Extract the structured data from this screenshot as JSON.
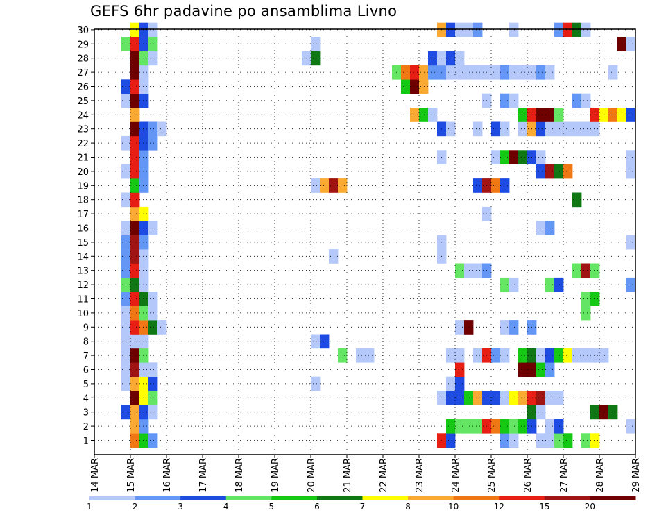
{
  "chart_data": {
    "type": "heatmap",
    "title": "GEFS 6hr padavine po ansamblima Livno",
    "x_tick_labels": [
      "14 MAR",
      "15 MAR",
      "16 MAR",
      "17 MAR",
      "18 MAR",
      "19 MAR",
      "20 MAR",
      "21 MAR",
      "22 MAR",
      "23 MAR",
      "24 MAR",
      "25 MAR",
      "26 MAR",
      "27 MAR",
      "28 MAR",
      "29 MAR"
    ],
    "y_tick_labels": [
      "1",
      "2",
      "3",
      "4",
      "5",
      "6",
      "7",
      "8",
      "9",
      "10",
      "11",
      "12",
      "13",
      "14",
      "15",
      "16",
      "17",
      "18",
      "19",
      "20",
      "21",
      "22",
      "23",
      "24",
      "25",
      "26",
      "27",
      "28",
      "29",
      "30"
    ],
    "steps_per_day": 4,
    "grid": true,
    "colorbar": {
      "labels": [
        "1",
        "2",
        "3",
        "4",
        "5",
        "6",
        "7",
        "8",
        "10",
        "12",
        "15",
        "20"
      ],
      "colors": [
        "#b4c8fa",
        "#6496f5",
        "#1e4be1",
        "#64e664",
        "#14c814",
        "#0f7814",
        "#ffff00",
        "#faaa32",
        "#f07814",
        "#e61e14",
        "#a01414",
        "#6e0000"
      ]
    },
    "ensemble_rows": [
      {
        "member": 1,
        "segments": [
          [
            15.0,
            8
          ],
          [
            15.25,
            4
          ],
          [
            15.5,
            1
          ],
          [
            23.5,
            9
          ],
          [
            23.75,
            2
          ],
          [
            25.25,
            1
          ],
          [
            25.5,
            0
          ],
          [
            26.25,
            0
          ],
          [
            26.5,
            0
          ],
          [
            26.75,
            3
          ],
          [
            27.0,
            4
          ],
          [
            27.5,
            3
          ],
          [
            27.75,
            6
          ]
        ]
      },
      {
        "member": 2,
        "segments": [
          [
            15.0,
            7
          ],
          [
            15.25,
            1
          ],
          [
            23.75,
            4
          ],
          [
            24.0,
            3
          ],
          [
            24.25,
            3
          ],
          [
            24.5,
            3
          ],
          [
            24.75,
            9
          ],
          [
            25.0,
            8
          ],
          [
            25.25,
            4
          ],
          [
            25.5,
            3
          ],
          [
            25.75,
            4
          ],
          [
            26.0,
            2
          ],
          [
            26.5,
            0
          ],
          [
            26.75,
            2
          ],
          [
            28.75,
            0
          ]
        ]
      },
      {
        "member": 3,
        "segments": [
          [
            14.75,
            2
          ],
          [
            15.0,
            7
          ],
          [
            15.25,
            2
          ],
          [
            15.5,
            0
          ],
          [
            26.0,
            5
          ],
          [
            26.25,
            0
          ],
          [
            27.75,
            5
          ],
          [
            28.0,
            11
          ],
          [
            28.25,
            5
          ]
        ]
      },
      {
        "member": 4,
        "segments": [
          [
            15.0,
            11
          ],
          [
            15.25,
            6
          ],
          [
            15.5,
            3
          ],
          [
            23.5,
            0
          ],
          [
            23.75,
            2
          ],
          [
            24.0,
            2
          ],
          [
            24.25,
            4
          ],
          [
            24.5,
            7
          ],
          [
            24.75,
            2
          ],
          [
            25.0,
            2
          ],
          [
            25.25,
            0
          ],
          [
            25.5,
            6
          ],
          [
            25.75,
            7
          ],
          [
            26.0,
            9
          ],
          [
            26.25,
            10
          ],
          [
            26.5,
            0
          ],
          [
            26.75,
            0
          ]
        ]
      },
      {
        "member": 5,
        "segments": [
          [
            14.75,
            0
          ],
          [
            15.0,
            7
          ],
          [
            15.25,
            6
          ],
          [
            15.5,
            2
          ],
          [
            20.0,
            0
          ],
          [
            23.75,
            0
          ],
          [
            24.0,
            2
          ]
        ]
      },
      {
        "member": 6,
        "segments": [
          [
            14.75,
            0
          ],
          [
            15.0,
            10
          ],
          [
            15.25,
            0
          ],
          [
            15.5,
            0
          ],
          [
            24.0,
            9
          ],
          [
            25.75,
            11
          ],
          [
            26.0,
            11
          ],
          [
            26.25,
            4
          ],
          [
            26.5,
            1
          ]
        ]
      },
      {
        "member": 7,
        "segments": [
          [
            14.75,
            0
          ],
          [
            15.0,
            11
          ],
          [
            15.25,
            3
          ],
          [
            20.75,
            3
          ],
          [
            21.25,
            0
          ],
          [
            21.5,
            0
          ],
          [
            23.75,
            0
          ],
          [
            24.0,
            0
          ],
          [
            24.5,
            0
          ],
          [
            24.75,
            9
          ],
          [
            25.0,
            1
          ],
          [
            25.25,
            0
          ],
          [
            25.75,
            4
          ],
          [
            26.0,
            5
          ],
          [
            26.25,
            0
          ],
          [
            26.5,
            2
          ],
          [
            26.75,
            4
          ],
          [
            27.0,
            6
          ],
          [
            27.25,
            0
          ],
          [
            27.5,
            0
          ],
          [
            27.75,
            0
          ],
          [
            28.0,
            0
          ]
        ]
      },
      {
        "member": 8,
        "segments": [
          [
            14.75,
            0
          ],
          [
            15.0,
            0
          ],
          [
            15.25,
            0
          ],
          [
            20.0,
            0
          ],
          [
            20.25,
            2
          ]
        ]
      },
      {
        "member": 9,
        "segments": [
          [
            14.75,
            0
          ],
          [
            15.0,
            9
          ],
          [
            15.25,
            8
          ],
          [
            15.5,
            5
          ],
          [
            15.75,
            0
          ],
          [
            24.0,
            0
          ],
          [
            24.25,
            11
          ],
          [
            25.25,
            0
          ],
          [
            25.5,
            1
          ],
          [
            26.0,
            1
          ]
        ]
      },
      {
        "member": 10,
        "segments": [
          [
            14.75,
            0
          ],
          [
            15.0,
            8
          ],
          [
            15.25,
            3
          ],
          [
            15.5,
            0
          ],
          [
            27.5,
            3
          ]
        ]
      },
      {
        "member": 11,
        "segments": [
          [
            14.75,
            1
          ],
          [
            15.0,
            9
          ],
          [
            15.25,
            5
          ],
          [
            15.5,
            0
          ],
          [
            27.5,
            3
          ],
          [
            27.75,
            4
          ]
        ]
      },
      {
        "member": 12,
        "segments": [
          [
            14.75,
            3
          ],
          [
            15.0,
            5
          ],
          [
            15.25,
            0
          ],
          [
            25.25,
            3
          ],
          [
            25.5,
            0
          ],
          [
            26.5,
            3
          ],
          [
            26.75,
            2
          ],
          [
            28.75,
            1
          ]
        ]
      },
      {
        "member": 13,
        "segments": [
          [
            14.75,
            1
          ],
          [
            15.0,
            9
          ],
          [
            15.25,
            0
          ],
          [
            24.0,
            3
          ],
          [
            24.25,
            0
          ],
          [
            24.5,
            0
          ],
          [
            24.75,
            1
          ],
          [
            27.25,
            3
          ],
          [
            27.5,
            10
          ],
          [
            27.75,
            3
          ]
        ]
      },
      {
        "member": 14,
        "segments": [
          [
            14.75,
            1
          ],
          [
            15.0,
            10
          ],
          [
            15.25,
            0
          ],
          [
            20.5,
            0
          ],
          [
            23.5,
            0
          ]
        ]
      },
      {
        "member": 15,
        "segments": [
          [
            14.75,
            1
          ],
          [
            15.0,
            10
          ],
          [
            15.25,
            1
          ],
          [
            23.5,
            0
          ],
          [
            28.75,
            0
          ]
        ]
      },
      {
        "member": 16,
        "segments": [
          [
            14.75,
            0
          ],
          [
            15.0,
            11
          ],
          [
            15.25,
            2
          ],
          [
            15.5,
            0
          ],
          [
            26.25,
            0
          ],
          [
            26.5,
            1
          ]
        ]
      },
      {
        "member": 17,
        "segments": [
          [
            15.0,
            7
          ],
          [
            15.25,
            6
          ],
          [
            24.75,
            0
          ]
        ]
      },
      {
        "member": 18,
        "segments": [
          [
            14.75,
            0
          ],
          [
            15.0,
            9
          ],
          [
            27.25,
            5
          ]
        ]
      },
      {
        "member": 19,
        "segments": [
          [
            15.0,
            4
          ],
          [
            15.25,
            1
          ],
          [
            20.0,
            0
          ],
          [
            20.25,
            7
          ],
          [
            20.5,
            10
          ],
          [
            20.75,
            7
          ],
          [
            24.5,
            2
          ],
          [
            24.75,
            10
          ],
          [
            25.0,
            8
          ],
          [
            25.25,
            2
          ]
        ]
      },
      {
        "member": 20,
        "segments": [
          [
            14.75,
            0
          ],
          [
            15.0,
            9
          ],
          [
            15.25,
            1
          ],
          [
            26.25,
            2
          ],
          [
            26.5,
            10
          ],
          [
            26.75,
            5
          ],
          [
            27.0,
            8
          ],
          [
            28.75,
            0
          ]
        ]
      },
      {
        "member": 21,
        "segments": [
          [
            15.0,
            9
          ],
          [
            15.25,
            1
          ],
          [
            23.5,
            0
          ],
          [
            25.0,
            0
          ],
          [
            25.25,
            4
          ],
          [
            25.5,
            11
          ],
          [
            25.75,
            5
          ],
          [
            26.0,
            2
          ],
          [
            26.25,
            0
          ],
          [
            28.75,
            0
          ]
        ]
      },
      {
        "member": 22,
        "segments": [
          [
            14.75,
            0
          ],
          [
            15.0,
            9
          ],
          [
            15.25,
            2
          ],
          [
            15.5,
            1
          ]
        ]
      },
      {
        "member": 23,
        "segments": [
          [
            15.0,
            11
          ],
          [
            15.25,
            2
          ],
          [
            15.5,
            1
          ],
          [
            15.75,
            0
          ],
          [
            23.5,
            2
          ],
          [
            23.75,
            0
          ],
          [
            24.5,
            0
          ],
          [
            25.0,
            2
          ],
          [
            25.25,
            0
          ],
          [
            25.75,
            0
          ],
          [
            26.0,
            7
          ],
          [
            26.25,
            2
          ],
          [
            26.5,
            0
          ],
          [
            26.75,
            0
          ],
          [
            27.0,
            0
          ],
          [
            27.25,
            0
          ],
          [
            27.5,
            0
          ],
          [
            27.75,
            0
          ]
        ]
      },
      {
        "member": 24,
        "segments": [
          [
            15.0,
            7
          ],
          [
            22.75,
            7
          ],
          [
            23.0,
            4
          ],
          [
            23.25,
            0
          ],
          [
            25.75,
            4
          ],
          [
            26.0,
            9
          ],
          [
            26.25,
            11
          ],
          [
            26.5,
            11
          ],
          [
            26.75,
            3
          ],
          [
            27.75,
            9
          ],
          [
            28.0,
            6
          ],
          [
            28.25,
            8
          ],
          [
            28.5,
            6
          ],
          [
            28.75,
            2
          ]
        ]
      },
      {
        "member": 25,
        "segments": [
          [
            14.75,
            0
          ],
          [
            15.0,
            11
          ],
          [
            15.25,
            2
          ],
          [
            24.75,
            0
          ],
          [
            25.25,
            1
          ],
          [
            25.5,
            0
          ],
          [
            27.25,
            1
          ],
          [
            27.5,
            0
          ]
        ]
      },
      {
        "member": 26,
        "segments": [
          [
            14.75,
            2
          ],
          [
            15.0,
            9
          ],
          [
            15.25,
            0
          ],
          [
            22.5,
            4
          ],
          [
            22.75,
            11
          ],
          [
            23.0,
            7
          ]
        ]
      },
      {
        "member": 27,
        "segments": [
          [
            15.0,
            11
          ],
          [
            15.25,
            0
          ],
          [
            22.25,
            3
          ],
          [
            22.5,
            8
          ],
          [
            22.75,
            9
          ],
          [
            23.0,
            7
          ],
          [
            23.25,
            1
          ],
          [
            23.5,
            1
          ],
          [
            23.75,
            0
          ],
          [
            24.0,
            0
          ],
          [
            24.25,
            0
          ],
          [
            24.5,
            0
          ],
          [
            24.75,
            0
          ],
          [
            25.0,
            0
          ],
          [
            25.25,
            1
          ],
          [
            25.5,
            0
          ],
          [
            25.75,
            0
          ],
          [
            26.0,
            0
          ],
          [
            26.25,
            1
          ],
          [
            26.5,
            0
          ],
          [
            28.25,
            0
          ]
        ]
      },
      {
        "member": 28,
        "segments": [
          [
            15.0,
            11
          ],
          [
            15.25,
            3
          ],
          [
            15.5,
            0
          ],
          [
            19.75,
            0
          ],
          [
            20.0,
            5
          ],
          [
            23.25,
            2
          ],
          [
            23.5,
            0
          ],
          [
            23.75,
            2
          ],
          [
            24.0,
            0
          ]
        ]
      },
      {
        "member": 29,
        "segments": [
          [
            14.75,
            3
          ],
          [
            15.0,
            9
          ],
          [
            15.25,
            2
          ],
          [
            15.5,
            3
          ],
          [
            20.0,
            0
          ],
          [
            28.5,
            11
          ],
          [
            28.75,
            0
          ]
        ]
      },
      {
        "member": 30,
        "segments": [
          [
            15.0,
            6
          ],
          [
            15.25,
            2
          ],
          [
            15.5,
            0
          ],
          [
            23.5,
            7
          ],
          [
            23.75,
            2
          ],
          [
            24.0,
            0
          ],
          [
            24.25,
            0
          ],
          [
            24.5,
            1
          ],
          [
            25.5,
            0
          ],
          [
            26.75,
            1
          ],
          [
            27.0,
            9
          ],
          [
            27.25,
            5
          ],
          [
            27.5,
            0
          ]
        ]
      }
    ]
  }
}
